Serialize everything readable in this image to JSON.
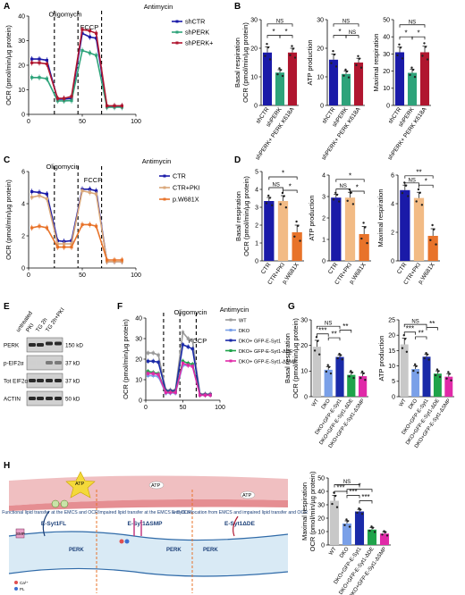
{
  "panel_labels": {
    "A": "A",
    "B": "B",
    "C": "C",
    "D": "D",
    "E": "E",
    "F": "F",
    "G": "G",
    "H": "H"
  },
  "panel_A": {
    "chart_data": {
      "type": "line",
      "ylabel": "OCR (pmol/min/µg protein)",
      "xlim": [
        0,
        100
      ],
      "ylim": [
        0,
        40
      ],
      "yticks": [
        0,
        10,
        20,
        30,
        40
      ],
      "xticks": [
        0,
        50,
        100
      ],
      "annotations": [
        "Oligomycin",
        "FCCP",
        "Antimycin"
      ],
      "x": [
        3,
        10,
        17,
        27,
        33,
        40,
        50,
        57,
        63,
        73,
        80,
        87
      ],
      "series": [
        {
          "name": "shCTR",
          "color": "#1a1aa8",
          "values": [
            22.5,
            22.5,
            22,
            6.2,
            6.2,
            6.5,
            33,
            31.5,
            31,
            3.2,
            3.2,
            3.2
          ]
        },
        {
          "name": "shPERK",
          "color": "#2ea37a",
          "values": [
            15,
            15,
            14.5,
            5.5,
            5.5,
            5.6,
            26,
            25,
            24,
            2.9,
            2.9,
            2.9
          ]
        },
        {
          "name": "shPERK+",
          "sup": "K618A",
          "sup_prefix": "PERK",
          "color": "#b0162f",
          "values": [
            21,
            21,
            20.5,
            6.5,
            6.5,
            7.3,
            34.5,
            34,
            33,
            3.5,
            3.5,
            3.5
          ]
        }
      ]
    }
  },
  "panel_B": {
    "stats": {
      "ns": "NS",
      "star": "*"
    },
    "chart_data": [
      {
        "type": "bar",
        "ylabel": "Basal respiration\nOCR (pmol/min/µg protein)",
        "ylim": [
          0,
          30
        ],
        "yticks": [
          0,
          10,
          20,
          30
        ],
        "categories": [
          "shCTR",
          "shPERK",
          "shPERK+ PERK K618A"
        ],
        "values": [
          18.5,
          11.5,
          18.5
        ],
        "errors": [
          2,
          1,
          1.5
        ],
        "colors": [
          "#1a1aa8",
          "#2ea37a",
          "#b0162f"
        ]
      },
      {
        "type": "bar",
        "ylabel": "ATP production",
        "ylim": [
          0,
          30
        ],
        "yticks": [
          0,
          10,
          20,
          30
        ],
        "categories": [
          "shCTR",
          "shPERK",
          "shPERK+ PERK K618A"
        ],
        "values": [
          16,
          11,
          15
        ],
        "errors": [
          2,
          1,
          1.5
        ],
        "colors": [
          "#1a1aa8",
          "#2ea37a",
          "#b0162f"
        ]
      },
      {
        "type": "bar",
        "ylabel": "Maximal respiration",
        "ylim": [
          0,
          50
        ],
        "yticks": [
          0,
          10,
          20,
          30,
          40,
          50
        ],
        "categories": [
          "shCTR",
          "shPERK",
          "shPERK+ PERK K618A"
        ],
        "values": [
          31,
          19,
          31
        ],
        "errors": [
          3,
          2,
          3.5
        ],
        "colors": [
          "#1a1aa8",
          "#2ea37a",
          "#b0162f"
        ]
      }
    ]
  },
  "panel_C": {
    "chart_data": {
      "type": "line",
      "ylabel": "OCR (pmol/min/µg protein)",
      "xlim": [
        0,
        100
      ],
      "ylim": [
        0,
        6
      ],
      "yticks": [
        0,
        2,
        4,
        6
      ],
      "xticks": [
        0,
        50,
        100
      ],
      "annotations": [
        "Oligomycin",
        "FCCP",
        "Antimycin"
      ],
      "x": [
        3,
        10,
        17,
        27,
        33,
        40,
        50,
        57,
        63,
        73,
        80,
        87
      ],
      "series": [
        {
          "name": "CTR",
          "color": "#1a1aa8",
          "values": [
            4.75,
            4.7,
            4.6,
            1.7,
            1.65,
            1.7,
            4.9,
            4.9,
            4.8,
            0.4,
            0.4,
            0.4
          ]
        },
        {
          "name": "CTR+PKI",
          "color": "#d9a77a",
          "values": [
            4.4,
            4.5,
            4.3,
            1.5,
            1.5,
            1.5,
            4.8,
            4.7,
            4.6,
            0.4,
            0.4,
            0.4
          ]
        },
        {
          "name": "p.W681X",
          "color": "#e8732a",
          "values": [
            2.5,
            2.6,
            2.5,
            1.3,
            1.3,
            1.3,
            2.7,
            2.7,
            2.6,
            0.5,
            0.5,
            0.5
          ]
        }
      ]
    }
  },
  "panel_D": {
    "stats": {
      "ns": "NS",
      "star": "*",
      "dstar": "**"
    },
    "chart_data": [
      {
        "type": "bar",
        "ylabel": "Basal respiration\nOCR (pmol/min/µg protein)",
        "ylim": [
          0,
          5
        ],
        "yticks": [
          0,
          1,
          2,
          3,
          4,
          5
        ],
        "categories": [
          "CTR",
          "CTR+PKI",
          "p.W681X"
        ],
        "values": [
          3.35,
          3.35,
          1.6
        ],
        "errors": [
          0.2,
          0.3,
          0.4
        ],
        "colors": [
          "#1a1aa8",
          "#f2bb85",
          "#e8732a"
        ]
      },
      {
        "type": "bar",
        "ylabel": "ATP production",
        "ylim": [
          0,
          4
        ],
        "yticks": [
          0,
          1,
          2,
          3,
          4
        ],
        "categories": [
          "CTR",
          "CTR+PKI",
          "p.W681X"
        ],
        "values": [
          2.95,
          2.95,
          1.25
        ],
        "errors": [
          0.15,
          0.25,
          0.35
        ],
        "colors": [
          "#1a1aa8",
          "#f2bb85",
          "#e8732a"
        ]
      },
      {
        "type": "bar",
        "ylabel": "Maximal respiration",
        "ylim": [
          0,
          6
        ],
        "yticks": [
          0,
          2,
          4,
          6
        ],
        "categories": [
          "CTR",
          "CTR+PKI",
          "p.W681X"
        ],
        "values": [
          4.95,
          4.4,
          1.75
        ],
        "errors": [
          0.35,
          0.4,
          0.5
        ],
        "colors": [
          "#1a1aa8",
          "#f2bb85",
          "#e8732a"
        ]
      }
    ]
  },
  "panel_E": {
    "lanes": [
      "untreated",
      "PKI",
      "TG 2h",
      "TG 2h+PKI"
    ],
    "rows": [
      {
        "label": "PERK",
        "mw": "150 kD"
      },
      {
        "label": "p-EIF2α",
        "mw": "37 kD"
      },
      {
        "label": "Tot EIF2α",
        "mw": "37 kD"
      },
      {
        "label": "ACTIN",
        "mw": "50 kD"
      }
    ]
  },
  "panel_F": {
    "chart_data": {
      "type": "line",
      "ylabel": "OCR (pmol/min/µg protein)",
      "xlim": [
        0,
        100
      ],
      "ylim": [
        0,
        40
      ],
      "yticks": [
        0,
        10,
        20,
        30,
        40
      ],
      "xticks": [
        0,
        50,
        100
      ],
      "annotations": [
        "Oligomycin",
        "FCCP",
        "Antimycin"
      ],
      "x": [
        3,
        10,
        17,
        27,
        33,
        40,
        50,
        57,
        63,
        73,
        80,
        87
      ],
      "series": [
        {
          "name": "WT",
          "color": "#9a9a9a",
          "values": [
            23,
            23,
            22,
            5,
            5,
            5,
            33,
            30,
            29,
            3,
            3,
            3
          ]
        },
        {
          "name": "DKO",
          "color": "#7aa0e8",
          "values": [
            12,
            12,
            11.5,
            3.5,
            3.5,
            3.5,
            17,
            17,
            16.5,
            2.5,
            2.5,
            2.5
          ]
        },
        {
          "name": "DKO+ GFP-E-Syt1",
          "color": "#1a2aa8",
          "values": [
            19,
            19,
            18.5,
            4.5,
            4.5,
            4.5,
            27,
            26,
            25,
            2.8,
            2.8,
            2.8
          ]
        },
        {
          "name": "DKO+ GFP-E-Syt1-ΔDE",
          "color": "#1fa34a",
          "values": [
            14,
            13.5,
            13,
            4,
            4,
            4,
            19,
            18,
            17.5,
            2.6,
            2.6,
            2.6
          ]
        },
        {
          "name": "DKO+ GFP-E-Syt1-ΔSMP",
          "color": "#e02aa8",
          "values": [
            13,
            13,
            12.5,
            3.8,
            3.8,
            3.8,
            18,
            17,
            16.5,
            2.5,
            2.5,
            2.5
          ]
        }
      ]
    }
  },
  "panel_G": {
    "stats": {
      "ns": "NS",
      "star": "*",
      "dstar": "**",
      "tstar": "***"
    },
    "chart_data": [
      {
        "type": "bar",
        "ylabel": "Basal respiration\nOCR (pmol/min/µg protein)",
        "ylim": [
          0,
          30
        ],
        "yticks": [
          0,
          10,
          20,
          30
        ],
        "categories": [
          "WT",
          "DKO",
          "DKO+GFP-E-Syt1",
          "DKO+GFP-E-Syt1-ΔDE",
          "DKO+GFP-E-Syt1-ΔSMP"
        ],
        "values": [
          19.5,
          10.5,
          15.5,
          8.5,
          8
        ],
        "errors": [
          2.5,
          1.2,
          0.8,
          1,
          1.2
        ],
        "colors": [
          "#c8c8c8",
          "#7aa0e8",
          "#1a2aa8",
          "#1fa34a",
          "#e02aa8"
        ]
      },
      {
        "type": "bar",
        "ylabel": "ATP production",
        "ylim": [
          0,
          25
        ],
        "yticks": [
          0,
          5,
          10,
          15,
          20,
          25
        ],
        "categories": [
          "WT",
          "DKO",
          "DKO+GFP-E-Syt1",
          "DKO+GFP-E-Syt1-ΔDE",
          "DKO+GFP-E-Syt1-ΔSMP"
        ],
        "values": [
          17,
          9,
          13,
          7.5,
          6.5
        ],
        "errors": [
          2,
          1,
          0.8,
          0.9,
          1
        ],
        "colors": [
          "#c8c8c8",
          "#7aa0e8",
          "#1a2aa8",
          "#1fa34a",
          "#e02aa8"
        ]
      }
    ]
  },
  "panel_H": {
    "titles": [
      "Functional lipid transfer at the EMCS and OCR",
      "Impaired lipid transfer at the EMCS and OCR",
      "E-Syt1 relocation from EMCS and impaired lipid transfer and OCR"
    ],
    "constructs": [
      "E-Syt1FL",
      "E-Syt1ΔSMP",
      "E-Syt1ΔDE"
    ],
    "labels": {
      "atp": "ATP",
      "smp": "SMP",
      "perk": "PERK",
      "ca": "Ca²⁺",
      "pl": "PL"
    },
    "chart_data": {
      "type": "bar",
      "ylabel": "Maximal respiration\nOCR (pmol/min/µg protein)",
      "ylim": [
        0,
        50
      ],
      "yticks": [
        0,
        10,
        20,
        30,
        40,
        50
      ],
      "categories": [
        "WT",
        "DKO",
        "DKO+GFP-E-Syt1",
        "DKO+GFP-E-Syt1-ΔDE",
        "DKO+GFP-E-Syt1-ΔSMP"
      ],
      "values": [
        33,
        16,
        25,
        11.5,
        8.5
      ],
      "errors": [
        4,
        2,
        1.5,
        1.5,
        1.2
      ],
      "colors": [
        "#c8c8c8",
        "#7aa0e8",
        "#1a2aa8",
        "#1fa34a",
        "#e02aa8"
      ]
    },
    "stats": {
      "ns": "NS",
      "star": "*",
      "tstar": "***"
    }
  }
}
